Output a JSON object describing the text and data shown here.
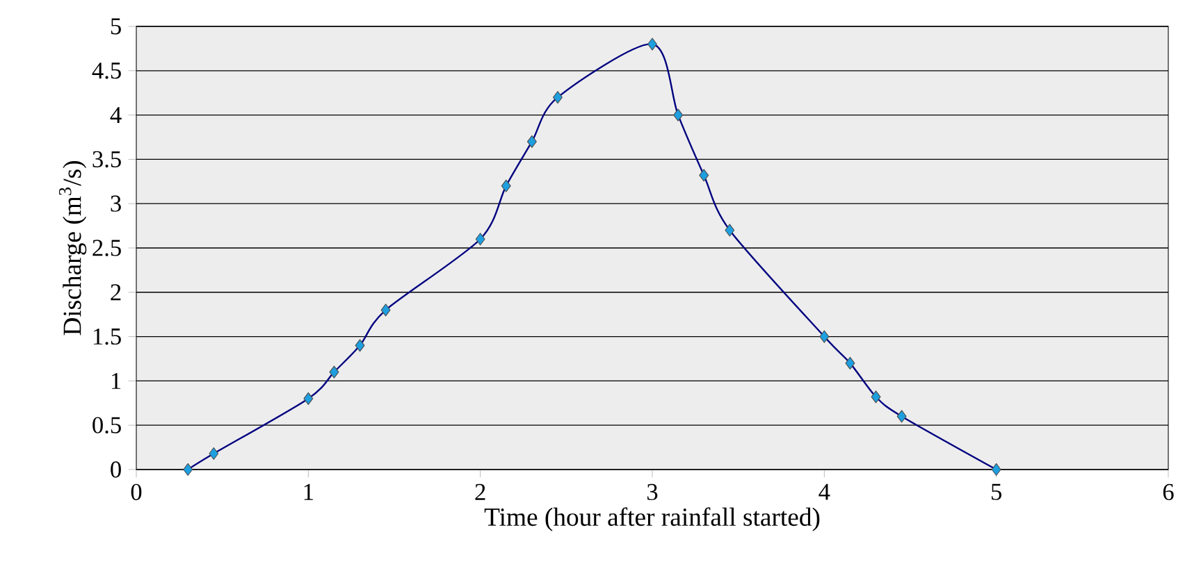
{
  "chart_data": {
    "type": "line",
    "xlabel": "Time (hour after rainfall started)",
    "ylabel": "Discharge (m$^{3}$/s)",
    "x": [
      0.3,
      0.45,
      1.0,
      1.15,
      1.3,
      1.45,
      2.0,
      2.15,
      2.3,
      2.45,
      3.0,
      3.15,
      3.3,
      3.45,
      4.0,
      4.15,
      4.3,
      4.45,
      5.0
    ],
    "series": [
      {
        "color": "#000080",
        "values": [
          0,
          0.18,
          0.8,
          1.1,
          1.4,
          1.8,
          2.6,
          3.2,
          3.7,
          4.2,
          4.8,
          4.0,
          3.32,
          2.7,
          1.5,
          1.2,
          0.82,
          0.6,
          0
        ]
      }
    ],
    "xlim": [
      0,
      6
    ],
    "xticks": [
      0,
      1,
      2,
      3,
      4,
      5,
      6
    ],
    "ylim": [
      0,
      5
    ],
    "yticks": [
      0,
      0.5,
      1,
      1.5,
      2,
      2.5,
      3,
      3.5,
      4,
      4.5,
      5
    ],
    "grid": "y",
    "marker": "diamond",
    "line_style": "solid",
    "legend": false
  }
}
